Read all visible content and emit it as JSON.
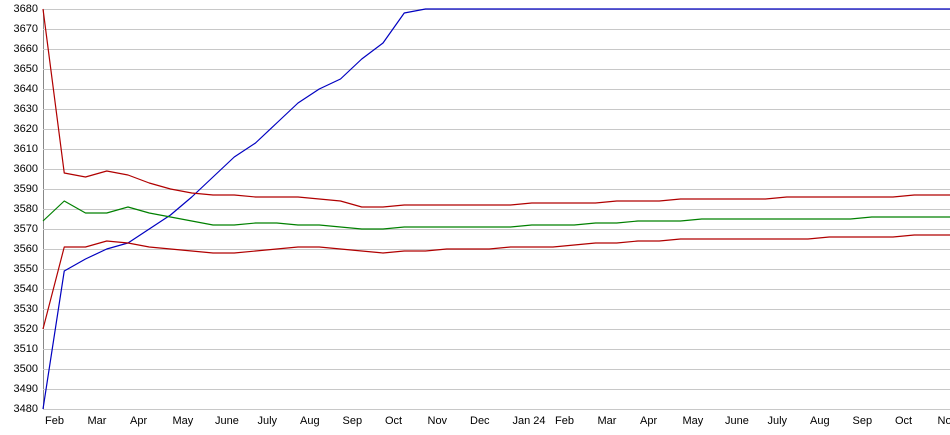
{
  "chart_data": {
    "type": "line",
    "categories": [
      "Feb",
      null,
      "Mar",
      null,
      "Apr",
      null,
      "May",
      null,
      "June",
      null,
      "July",
      null,
      "Aug",
      null,
      "Sep",
      null,
      "Oct",
      null,
      "Nov",
      null,
      "Dec",
      null,
      "Jan 24",
      null,
      "Feb",
      null,
      "Mar",
      null,
      "Apr",
      null,
      "May",
      null,
      "June",
      null,
      "July",
      null,
      "Aug",
      null,
      "Sep",
      null,
      "Oct",
      null,
      "Nov",
      null
    ],
    "series": [
      {
        "color": "#0000c0",
        "values": [
          3480,
          3549,
          3555,
          3560,
          3563,
          3570,
          3577,
          3586,
          3596,
          3606,
          3613,
          3623,
          3633,
          3640,
          3645,
          3655,
          3663,
          3678,
          3680,
          3680,
          3680,
          3680,
          3680,
          3680,
          3680,
          3680,
          3680,
          3680,
          3680,
          3680,
          3680,
          3680,
          3680,
          3680,
          3680,
          3680,
          3680,
          3680,
          3680,
          3680,
          3680,
          3680,
          3680,
          3680
        ]
      },
      {
        "color": "#b00000",
        "values": [
          3680,
          3598,
          3596,
          3599,
          3597,
          3593,
          3590,
          3588,
          3587,
          3587,
          3586,
          3586,
          3586,
          3585,
          3584,
          3581,
          3581,
          3582,
          3582,
          3582,
          3582,
          3582,
          3582,
          3583,
          3583,
          3583,
          3583,
          3584,
          3584,
          3584,
          3585,
          3585,
          3585,
          3585,
          3585,
          3586,
          3586,
          3586,
          3586,
          3586,
          3586,
          3587,
          3587,
          3587
        ]
      },
      {
        "color": "#008000",
        "values": [
          3574,
          3584,
          3578,
          3578,
          3581,
          3578,
          3576,
          3574,
          3572,
          3572,
          3573,
          3573,
          3572,
          3572,
          3571,
          3570,
          3570,
          3571,
          3571,
          3571,
          3571,
          3571,
          3571,
          3572,
          3572,
          3572,
          3573,
          3573,
          3574,
          3574,
          3574,
          3575,
          3575,
          3575,
          3575,
          3575,
          3575,
          3575,
          3575,
          3576,
          3576,
          3576,
          3576,
          3576
        ]
      },
      {
        "color": "#b00000",
        "values": [
          3520,
          3561,
          3561,
          3564,
          3563,
          3561,
          3560,
          3559,
          3558,
          3558,
          3559,
          3560,
          3561,
          3561,
          3560,
          3559,
          3558,
          3559,
          3559,
          3560,
          3560,
          3560,
          3561,
          3561,
          3561,
          3562,
          3563,
          3563,
          3564,
          3564,
          3565,
          3565,
          3565,
          3565,
          3565,
          3565,
          3565,
          3566,
          3566,
          3566,
          3566,
          3567,
          3567,
          3567
        ]
      }
    ],
    "ylim": [
      3480,
      3680
    ],
    "yticks": [
      3480,
      3490,
      3500,
      3510,
      3520,
      3530,
      3540,
      3550,
      3560,
      3570,
      3580,
      3590,
      3600,
      3610,
      3620,
      3630,
      3640,
      3650,
      3660,
      3670,
      3680
    ],
    "grid": true
  }
}
